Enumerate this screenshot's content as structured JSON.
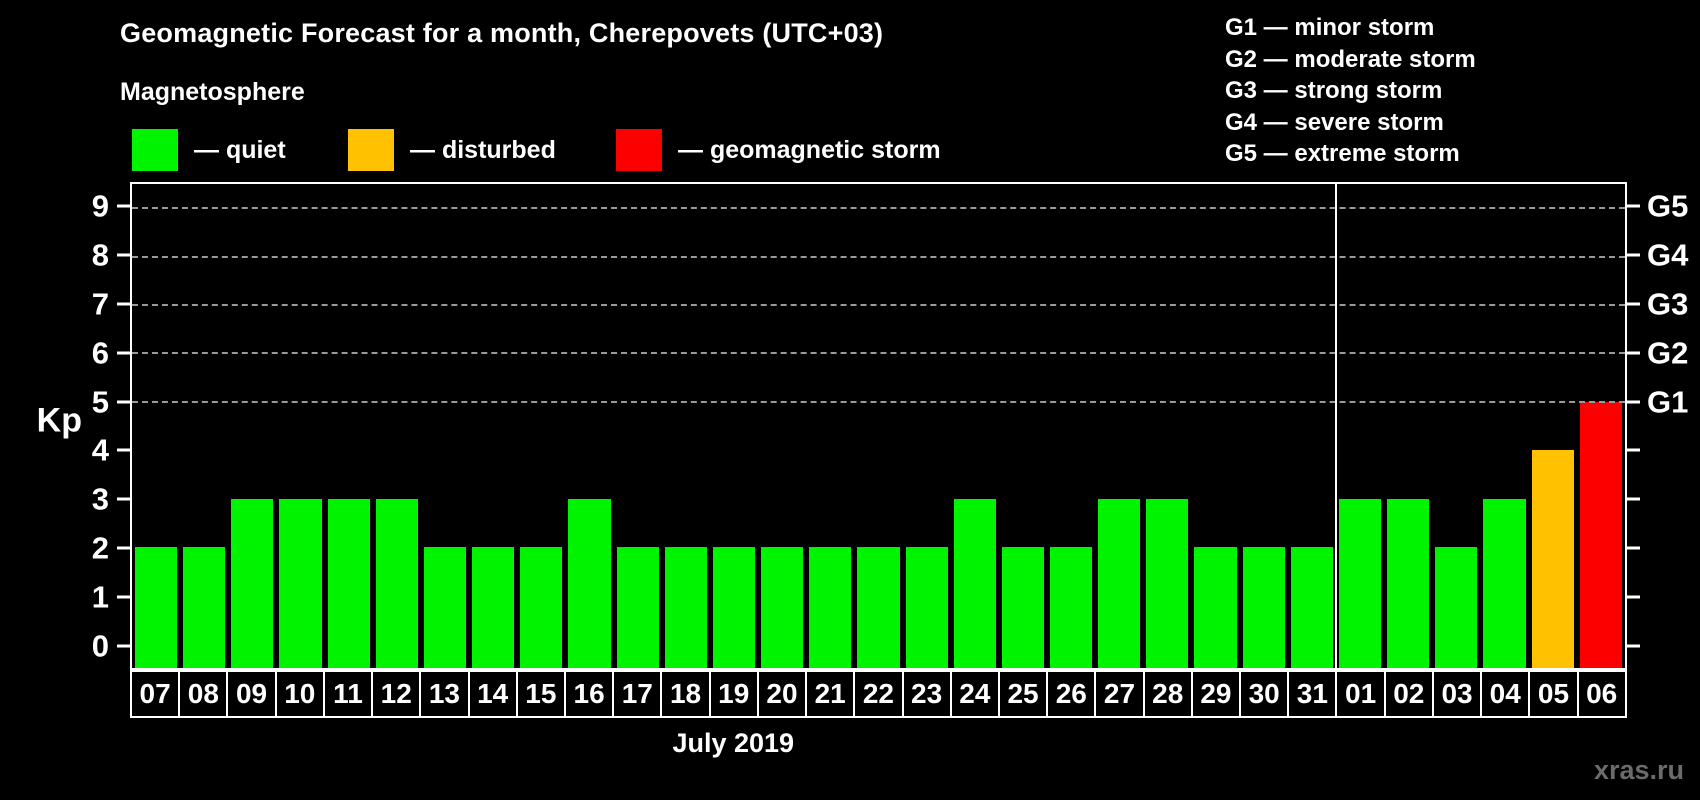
{
  "title": "Geomagnetic Forecast for a month, Cherepovets (UTC+03)",
  "subtitle": "Magnetosphere",
  "legend": {
    "items": [
      {
        "name": "quiet",
        "text": "— quiet",
        "color": "#00f400"
      },
      {
        "name": "disturbed",
        "text": "— disturbed",
        "color": "#ffc100"
      },
      {
        "name": "storm",
        "text": "— geomagnetic storm",
        "color": "#fc0000"
      }
    ]
  },
  "storm_scale": {
    "lines": [
      "G1 — minor storm",
      "G2 — moderate storm",
      "G3 — strong storm",
      "G4 — severe storm",
      "G5 — extreme storm"
    ]
  },
  "chart_data": {
    "type": "bar",
    "title": "Geomagnetic Forecast for a month, Cherepovets (UTC+03)",
    "ylabel": "Kp",
    "xlabel": "July 2019",
    "ylim": [
      -0.5,
      9.5
    ],
    "yticks": [
      0,
      1,
      2,
      3,
      4,
      5,
      6,
      7,
      8,
      9
    ],
    "gridline_kp": [
      5,
      6,
      7,
      8,
      9
    ],
    "right_axis": [
      {
        "kp": 5,
        "label": "G1"
      },
      {
        "kp": 6,
        "label": "G2"
      },
      {
        "kp": 7,
        "label": "G3"
      },
      {
        "kp": 8,
        "label": "G4"
      },
      {
        "kp": 9,
        "label": "G5"
      }
    ],
    "categories": [
      "07",
      "08",
      "09",
      "10",
      "11",
      "12",
      "13",
      "14",
      "15",
      "16",
      "17",
      "18",
      "19",
      "20",
      "21",
      "22",
      "23",
      "24",
      "25",
      "26",
      "27",
      "28",
      "29",
      "30",
      "31",
      "01",
      "02",
      "03",
      "04",
      "05",
      "06"
    ],
    "values": [
      2,
      2,
      3,
      3,
      3,
      3,
      2,
      2,
      2,
      3,
      2,
      2,
      2,
      2,
      2,
      2,
      2,
      3,
      2,
      2,
      3,
      3,
      2,
      2,
      2,
      3,
      3,
      2,
      3,
      4,
      5
    ],
    "month_separator_index": 25,
    "colors": {
      "quiet": "#00f400",
      "disturbed": "#ffc100",
      "storm": "#fc0000"
    },
    "color_thresholds": {
      "quiet_max": 3,
      "disturbed_max": 4
    },
    "grid": "dashed-horizontal",
    "legend_position": "top"
  },
  "watermark": "xras.ru"
}
